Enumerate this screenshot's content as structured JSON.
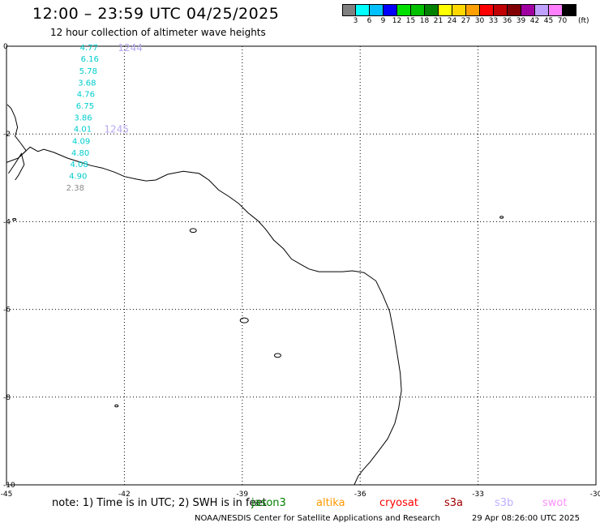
{
  "header": {
    "title": "12:00 – 23:59 UTC 04/25/2025",
    "subtitle": "12 hour collection of altimeter wave heights"
  },
  "color_scale": {
    "colors": [
      "#808080",
      "#00ffff",
      "#00c0ff",
      "#0000ff",
      "#00e000",
      "#00c000",
      "#008000",
      "#ffff00",
      "#ffd700",
      "#ffa000",
      "#ff0000",
      "#c00000",
      "#800000",
      "#a000a0",
      "#c0a0ff",
      "#ff80ff",
      "#000000"
    ],
    "labels": [
      "3",
      "6",
      "9",
      "12",
      "15",
      "18",
      "21",
      "24",
      "27",
      "30",
      "33",
      "36",
      "39",
      "42",
      "45",
      "70"
    ],
    "unit": "(ft)"
  },
  "map": {
    "x_ticks": [
      "-45",
      "-42",
      "-39",
      "-36",
      "-33",
      "-30"
    ],
    "y_ticks": [
      "0",
      "-2",
      "-4",
      "-6",
      "-8",
      "-10"
    ],
    "lon_range": [
      -45,
      -30
    ],
    "lat_range": [
      -10,
      0
    ],
    "colors": {
      "coast": "#000000",
      "grid": "#000000",
      "track_text": "#00cccc",
      "track_text_low": "#8a8a8a",
      "pass_label": "#b8a8f0"
    },
    "observations": [
      {
        "value": "4.77",
        "lon": -42.9,
        "lat": -0.02
      },
      {
        "value": "6.16",
        "lon": -42.88,
        "lat": -0.28
      },
      {
        "value": "5.78",
        "lon": -42.92,
        "lat": -0.55
      },
      {
        "value": "3.68",
        "lon": -42.95,
        "lat": -0.82
      },
      {
        "value": "4.76",
        "lon": -42.98,
        "lat": -1.08
      },
      {
        "value": "6.75",
        "lon": -43.0,
        "lat": -1.35
      },
      {
        "value": "3.86",
        "lon": -43.05,
        "lat": -1.62
      },
      {
        "value": "4.01",
        "lon": -43.06,
        "lat": -1.88
      },
      {
        "value": "4.09",
        "lon": -43.1,
        "lat": -2.15
      },
      {
        "value": "4.80",
        "lon": -43.12,
        "lat": -2.42
      },
      {
        "value": "4.08",
        "lon": -43.15,
        "lat": -2.68
      },
      {
        "value": "4.90",
        "lon": -43.18,
        "lat": -2.95
      },
      {
        "value": "2.38",
        "lon": -43.25,
        "lat": -3.22
      }
    ],
    "pass_labels": [
      {
        "value": "1244",
        "lon": -41.85,
        "lat": -0.02
      },
      {
        "value": "1245",
        "lon": -42.2,
        "lat": -1.88
      }
    ]
  },
  "note": "note:  1) Time is in UTC; 2) SWH is in feet",
  "satellites": [
    {
      "name": "jason3",
      "color": "#008000"
    },
    {
      "name": "altika",
      "color": "#ff9900"
    },
    {
      "name": "cryosat",
      "color": "#ff0000"
    },
    {
      "name": "s3a",
      "color": "#a00000"
    },
    {
      "name": "s3b",
      "color": "#c0b0ff"
    },
    {
      "name": "swot",
      "color": "#ff90ff"
    }
  ],
  "footer": {
    "credit": "NOAA/NESDIS Center for Satellite Applications and Research",
    "timestamp": "29 Apr 08:26:00 UTC 2025"
  }
}
